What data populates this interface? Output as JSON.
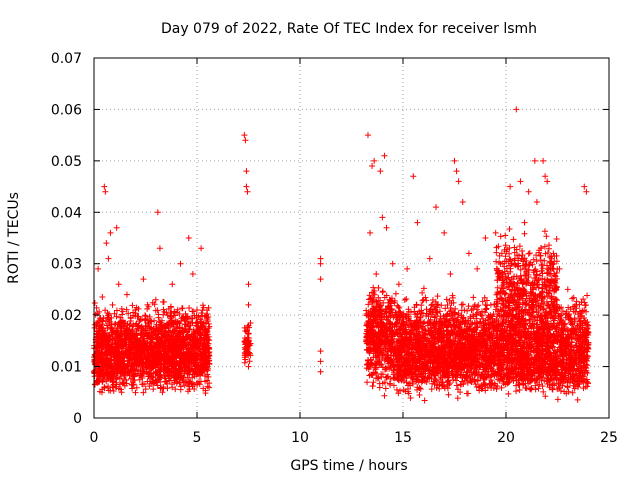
{
  "chart_data": {
    "type": "scatter",
    "title": "Day 079 of 2022, Rate Of TEC Index for receiver lsmh",
    "xlabel": "GPS time / hours",
    "ylabel": "ROTI / TECUs",
    "xlim": [
      0,
      25
    ],
    "ylim": [
      0,
      0.07
    ],
    "x_ticks": [
      0,
      5,
      10,
      15,
      20,
      25
    ],
    "x_tick_labels": [
      "0",
      "5",
      "10",
      "15",
      "20",
      "25"
    ],
    "y_ticks": [
      0,
      0.01,
      0.02,
      0.03,
      0.04,
      0.05,
      0.06,
      0.07
    ],
    "y_tick_labels": [
      "0",
      "0.01",
      "0.02",
      "0.03",
      "0.04",
      "0.05",
      "0.06",
      "0.07"
    ],
    "grid": true,
    "marker": "plus",
    "color": "#ff0000",
    "series": [
      {
        "points": [
          [
            0.1,
            0.012
          ],
          [
            0.2,
            0.029
          ],
          [
            0.3,
            0.018
          ],
          [
            0.4,
            0.007
          ],
          [
            0.5,
            0.045
          ],
          [
            0.55,
            0.044
          ],
          [
            0.6,
            0.034
          ],
          [
            0.7,
            0.031
          ],
          [
            0.8,
            0.036
          ],
          [
            0.9,
            0.022
          ],
          [
            1.0,
            0.015
          ],
          [
            1.1,
            0.037
          ],
          [
            1.2,
            0.026
          ],
          [
            1.4,
            0.019
          ],
          [
            1.5,
            0.009
          ],
          [
            1.6,
            0.024
          ],
          [
            1.8,
            0.013
          ],
          [
            2.0,
            0.021
          ],
          [
            2.2,
            0.011
          ],
          [
            2.4,
            0.027
          ],
          [
            2.6,
            0.016
          ],
          [
            2.8,
            0.008
          ],
          [
            3.0,
            0.023
          ],
          [
            3.1,
            0.04
          ],
          [
            3.2,
            0.033
          ],
          [
            3.4,
            0.018
          ],
          [
            3.6,
            0.012
          ],
          [
            3.8,
            0.026
          ],
          [
            4.0,
            0.014
          ],
          [
            4.2,
            0.03
          ],
          [
            4.4,
            0.019
          ],
          [
            4.6,
            0.035
          ],
          [
            4.8,
            0.028
          ],
          [
            5.0,
            0.021
          ],
          [
            5.2,
            0.033
          ],
          [
            5.4,
            0.017
          ],
          [
            5.5,
            0.01
          ],
          [
            7.3,
            0.055
          ],
          [
            7.35,
            0.054
          ],
          [
            7.4,
            0.048
          ],
          [
            7.4,
            0.045
          ],
          [
            7.45,
            0.044
          ],
          [
            7.5,
            0.026
          ],
          [
            7.5,
            0.022
          ],
          [
            7.5,
            0.018
          ],
          [
            7.5,
            0.014
          ],
          [
            7.5,
            0.01
          ],
          [
            11.0,
            0.031
          ],
          [
            11.0,
            0.03
          ],
          [
            11.0,
            0.027
          ],
          [
            11.0,
            0.013
          ],
          [
            11.0,
            0.011
          ],
          [
            11.0,
            0.009
          ],
          [
            13.3,
            0.055
          ],
          [
            13.4,
            0.036
          ],
          [
            13.5,
            0.049
          ],
          [
            13.6,
            0.05
          ],
          [
            13.7,
            0.028
          ],
          [
            13.8,
            0.022
          ],
          [
            13.9,
            0.048
          ],
          [
            14.0,
            0.039
          ],
          [
            14.1,
            0.051
          ],
          [
            14.2,
            0.037
          ],
          [
            14.5,
            0.03
          ],
          [
            14.8,
            0.026
          ],
          [
            15.2,
            0.029
          ],
          [
            15.5,
            0.047
          ],
          [
            15.7,
            0.038
          ],
          [
            16.0,
            0.023
          ],
          [
            16.3,
            0.031
          ],
          [
            16.6,
            0.041
          ],
          [
            17.0,
            0.036
          ],
          [
            17.3,
            0.028
          ],
          [
            17.5,
            0.05
          ],
          [
            17.6,
            0.048
          ],
          [
            17.7,
            0.046
          ],
          [
            17.9,
            0.042
          ],
          [
            18.2,
            0.032
          ],
          [
            18.6,
            0.029
          ],
          [
            19.0,
            0.035
          ],
          [
            19.5,
            0.036
          ],
          [
            19.8,
            0.032
          ],
          [
            20.2,
            0.045
          ],
          [
            20.5,
            0.06
          ],
          [
            20.7,
            0.046
          ],
          [
            20.9,
            0.038
          ],
          [
            21.1,
            0.044
          ],
          [
            21.4,
            0.05
          ],
          [
            21.5,
            0.042
          ],
          [
            21.8,
            0.05
          ],
          [
            21.9,
            0.047
          ],
          [
            22.0,
            0.046
          ],
          [
            22.3,
            0.032
          ],
          [
            22.6,
            0.029
          ],
          [
            23.0,
            0.025
          ],
          [
            23.4,
            0.022
          ],
          [
            23.8,
            0.045
          ],
          [
            23.9,
            0.044
          ]
        ]
      }
    ],
    "dense_bands": [
      {
        "x_range": [
          0.0,
          5.6
        ],
        "y_range": [
          0.004,
          0.024
        ],
        "count": 1500,
        "seed": 11
      },
      {
        "x_range": [
          0.0,
          5.6
        ],
        "y_range": [
          0.003,
          0.018
        ],
        "count": 700,
        "seed": 17
      },
      {
        "x_range": [
          7.3,
          7.6
        ],
        "y_range": [
          0.009,
          0.02
        ],
        "count": 60,
        "seed": 23
      },
      {
        "x_range": [
          13.2,
          14.5
        ],
        "y_range": [
          0.004,
          0.028
        ],
        "count": 500,
        "seed": 29
      },
      {
        "x_range": [
          14.5,
          24.0
        ],
        "y_range": [
          0.004,
          0.026
        ],
        "count": 2400,
        "seed": 31
      },
      {
        "x_range": [
          14.5,
          24.0
        ],
        "y_range": [
          0.003,
          0.017
        ],
        "count": 1200,
        "seed": 37
      },
      {
        "x_range": [
          19.5,
          22.5
        ],
        "y_range": [
          0.012,
          0.038
        ],
        "count": 500,
        "seed": 41
      }
    ]
  }
}
